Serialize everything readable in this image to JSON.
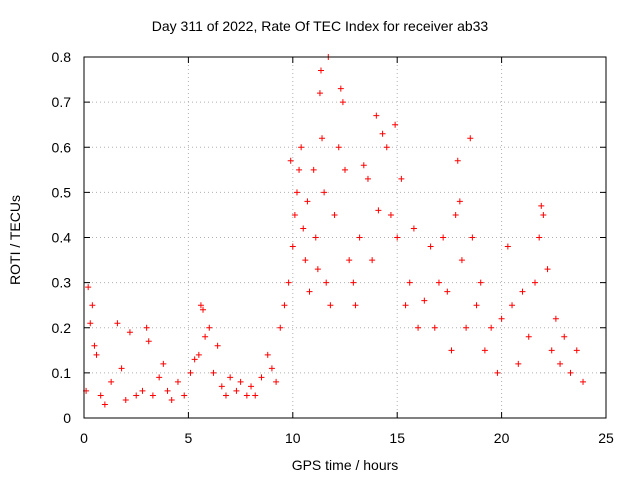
{
  "chart_data": {
    "type": "scatter",
    "title": "Day 311 of 2022, Rate Of TEC Index for receiver ab33",
    "xlabel": "GPS time / hours",
    "ylabel": "ROTI / TECUs",
    "xlim": [
      0,
      25
    ],
    "ylim": [
      0,
      0.8
    ],
    "xticks": [
      "0",
      "5",
      "10",
      "15",
      "20",
      "25"
    ],
    "yticks": [
      "0",
      "0.1",
      "0.2",
      "0.3",
      "0.4",
      "0.5",
      "0.6",
      "0.7",
      "0.8"
    ],
    "grid": true,
    "marker": "+",
    "color": "#ff0000",
    "series": [
      {
        "values": [
          [
            0.1,
            0.06
          ],
          [
            0.2,
            0.29
          ],
          [
            0.3,
            0.21
          ],
          [
            0.4,
            0.25
          ],
          [
            0.5,
            0.16
          ],
          [
            0.6,
            0.14
          ],
          [
            0.8,
            0.05
          ],
          [
            1.0,
            0.03
          ],
          [
            1.3,
            0.08
          ],
          [
            1.6,
            0.21
          ],
          [
            1.8,
            0.11
          ],
          [
            2.0,
            0.04
          ],
          [
            2.2,
            0.19
          ],
          [
            2.5,
            0.05
          ],
          [
            2.8,
            0.06
          ],
          [
            3.0,
            0.2
          ],
          [
            3.1,
            0.17
          ],
          [
            3.3,
            0.05
          ],
          [
            3.6,
            0.09
          ],
          [
            3.8,
            0.12
          ],
          [
            4.0,
            0.06
          ],
          [
            4.2,
            0.04
          ],
          [
            4.5,
            0.08
          ],
          [
            4.8,
            0.05
          ],
          [
            5.1,
            0.1
          ],
          [
            5.3,
            0.13
          ],
          [
            5.5,
            0.14
          ],
          [
            5.6,
            0.25
          ],
          [
            5.7,
            0.24
          ],
          [
            5.8,
            0.18
          ],
          [
            6.0,
            0.2
          ],
          [
            6.2,
            0.1
          ],
          [
            6.4,
            0.16
          ],
          [
            6.6,
            0.07
          ],
          [
            6.8,
            0.05
          ],
          [
            7.0,
            0.09
          ],
          [
            7.3,
            0.06
          ],
          [
            7.5,
            0.08
          ],
          [
            7.8,
            0.05
          ],
          [
            8.0,
            0.07
          ],
          [
            8.2,
            0.05
          ],
          [
            8.5,
            0.09
          ],
          [
            8.8,
            0.14
          ],
          [
            9.0,
            0.11
          ],
          [
            9.2,
            0.08
          ],
          [
            9.4,
            0.2
          ],
          [
            9.6,
            0.25
          ],
          [
            9.8,
            0.3
          ],
          [
            9.9,
            0.57
          ],
          [
            10.0,
            0.38
          ],
          [
            10.1,
            0.45
          ],
          [
            10.2,
            0.5
          ],
          [
            10.3,
            0.55
          ],
          [
            10.4,
            0.6
          ],
          [
            10.5,
            0.42
          ],
          [
            10.6,
            0.35
          ],
          [
            10.7,
            0.48
          ],
          [
            10.8,
            0.28
          ],
          [
            11.0,
            0.55
          ],
          [
            11.1,
            0.4
          ],
          [
            11.2,
            0.33
          ],
          [
            11.3,
            0.72
          ],
          [
            11.35,
            0.77
          ],
          [
            11.4,
            0.62
          ],
          [
            11.5,
            0.5
          ],
          [
            11.6,
            0.3
          ],
          [
            11.7,
            0.8
          ],
          [
            11.8,
            0.25
          ],
          [
            12.0,
            0.45
          ],
          [
            12.2,
            0.6
          ],
          [
            12.3,
            0.73
          ],
          [
            12.4,
            0.7
          ],
          [
            12.5,
            0.55
          ],
          [
            12.7,
            0.35
          ],
          [
            12.9,
            0.3
          ],
          [
            13.0,
            0.25
          ],
          [
            13.2,
            0.4
          ],
          [
            13.4,
            0.56
          ],
          [
            13.6,
            0.53
          ],
          [
            13.8,
            0.35
          ],
          [
            14.0,
            0.67
          ],
          [
            14.1,
            0.46
          ],
          [
            14.3,
            0.63
          ],
          [
            14.5,
            0.6
          ],
          [
            14.7,
            0.45
          ],
          [
            14.9,
            0.65
          ],
          [
            15.0,
            0.4
          ],
          [
            15.2,
            0.53
          ],
          [
            15.4,
            0.25
          ],
          [
            15.6,
            0.3
          ],
          [
            15.8,
            0.42
          ],
          [
            16.0,
            0.2
          ],
          [
            16.3,
            0.26
          ],
          [
            16.6,
            0.38
          ],
          [
            16.8,
            0.2
          ],
          [
            17.0,
            0.3
          ],
          [
            17.2,
            0.4
          ],
          [
            17.4,
            0.28
          ],
          [
            17.6,
            0.15
          ],
          [
            17.8,
            0.45
          ],
          [
            17.9,
            0.57
          ],
          [
            18.0,
            0.48
          ],
          [
            18.1,
            0.35
          ],
          [
            18.3,
            0.2
          ],
          [
            18.5,
            0.62
          ],
          [
            18.6,
            0.4
          ],
          [
            18.8,
            0.25
          ],
          [
            19.0,
            0.3
          ],
          [
            19.2,
            0.15
          ],
          [
            19.5,
            0.2
          ],
          [
            19.8,
            0.1
          ],
          [
            20.0,
            0.22
          ],
          [
            20.3,
            0.38
          ],
          [
            20.5,
            0.25
          ],
          [
            20.8,
            0.12
          ],
          [
            21.0,
            0.28
          ],
          [
            21.3,
            0.18
          ],
          [
            21.6,
            0.3
          ],
          [
            21.8,
            0.4
          ],
          [
            21.9,
            0.47
          ],
          [
            22.0,
            0.45
          ],
          [
            22.2,
            0.33
          ],
          [
            22.4,
            0.15
          ],
          [
            22.6,
            0.22
          ],
          [
            22.8,
            0.12
          ],
          [
            23.0,
            0.18
          ],
          [
            23.3,
            0.1
          ],
          [
            23.6,
            0.15
          ],
          [
            23.9,
            0.08
          ]
        ]
      }
    ]
  }
}
